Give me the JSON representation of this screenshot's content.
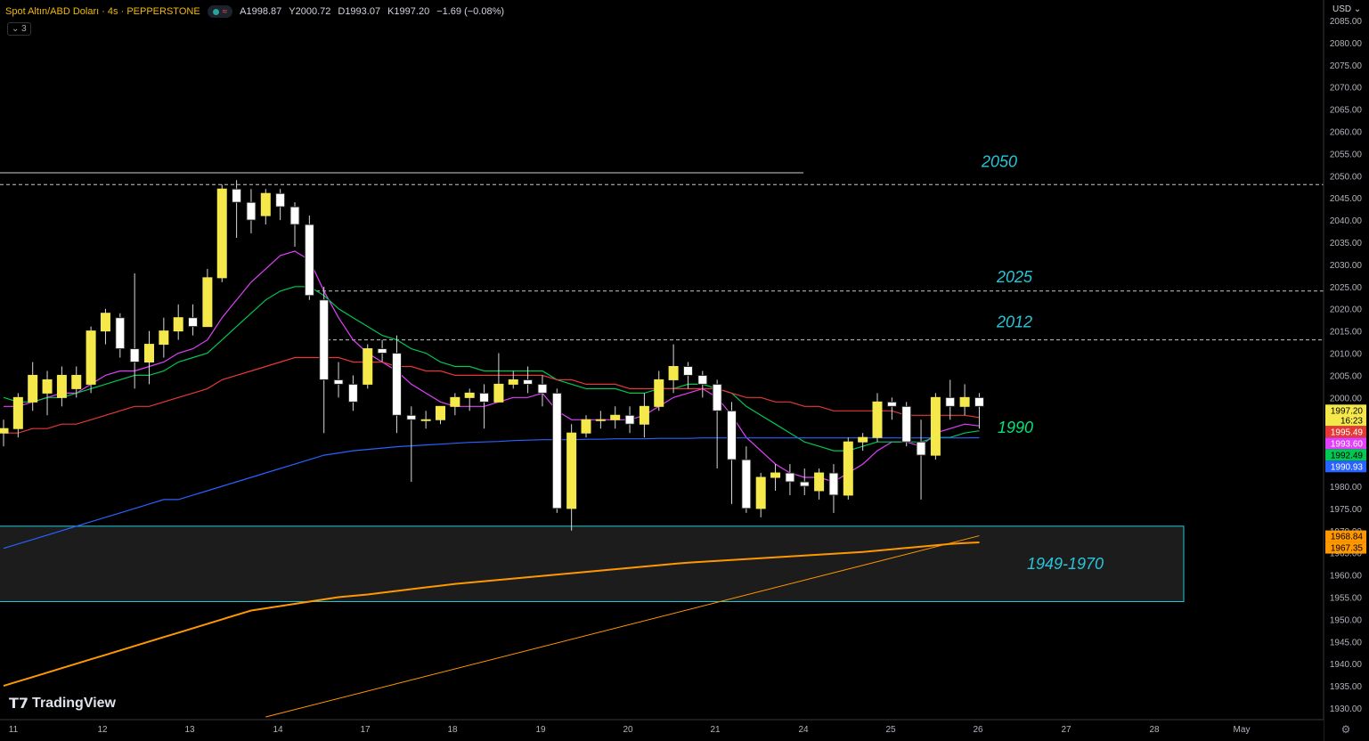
{
  "header": {
    "symbol": "Spot Altın/ABD Doları · 4s · PEPPERSTONE",
    "open": "A1998.87",
    "high": "Y2000.72",
    "low": "D1993.07",
    "close": "K1997.20",
    "change": "−1.69 (−0.08%)",
    "indicator_toggle": "3"
  },
  "currency": "USD",
  "logo": "TradingView",
  "chart_data": {
    "type": "candlestick",
    "title": "Spot Altın/ABD Doları · 4s · PEPPERSTONE",
    "ylim": [
      1928,
      2088
    ],
    "y_ticks": [
      "2085.00",
      "2080.00",
      "2075.00",
      "2070.00",
      "2065.00",
      "2060.00",
      "2055.00",
      "2050.00",
      "2045.00",
      "2040.00",
      "2035.00",
      "2030.00",
      "2025.00",
      "2020.00",
      "2015.00",
      "2010.00",
      "2005.00",
      "2000.00",
      "1995.00",
      "1990.00",
      "1985.00",
      "1980.00",
      "1975.00",
      "1970.00",
      "1965.00",
      "1960.00",
      "1955.00",
      "1950.00",
      "1945.00",
      "1940.00",
      "1935.00",
      "1930.00"
    ],
    "x_ticks": [
      "11",
      "12",
      "13",
      "14",
      "17",
      "18",
      "19",
      "20",
      "21",
      "24",
      "25",
      "26",
      "27",
      "28",
      "May"
    ],
    "candles": [
      {
        "o": 1992,
        "h": 1995,
        "l": 1989,
        "c": 1993
      },
      {
        "o": 1993,
        "h": 2001,
        "l": 1991,
        "c": 2000
      },
      {
        "o": 1999,
        "h": 2008,
        "l": 1997,
        "c": 2005
      },
      {
        "o": 2001,
        "h": 2006,
        "l": 1996,
        "c": 2004
      },
      {
        "o": 2000,
        "h": 2007,
        "l": 1998,
        "c": 2005
      },
      {
        "o": 2002,
        "h": 2007,
        "l": 2000,
        "c": 2005
      },
      {
        "o": 2003,
        "h": 2016,
        "l": 2001,
        "c": 2015
      },
      {
        "o": 2015,
        "h": 2020,
        "l": 2012,
        "c": 2019
      },
      {
        "o": 2018,
        "h": 2019,
        "l": 2009,
        "c": 2011
      },
      {
        "o": 2011,
        "h": 2028,
        "l": 2002,
        "c": 2008
      },
      {
        "o": 2008,
        "h": 2015,
        "l": 2003,
        "c": 2012
      },
      {
        "o": 2012,
        "h": 2018,
        "l": 2009,
        "c": 2015
      },
      {
        "o": 2015,
        "h": 2021,
        "l": 2013,
        "c": 2018
      },
      {
        "o": 2018,
        "h": 2021,
        "l": 2014,
        "c": 2016
      },
      {
        "o": 2016,
        "h": 2029,
        "l": 2016,
        "c": 2027
      },
      {
        "o": 2027,
        "h": 2048,
        "l": 2026,
        "c": 2047
      },
      {
        "o": 2047,
        "h": 2049,
        "l": 2036,
        "c": 2044
      },
      {
        "o": 2044,
        "h": 2047,
        "l": 2037,
        "c": 2040
      },
      {
        "o": 2041,
        "h": 2047,
        "l": 2039,
        "c": 2046
      },
      {
        "o": 2046,
        "h": 2047,
        "l": 2040,
        "c": 2043
      },
      {
        "o": 2043,
        "h": 2044,
        "l": 2034,
        "c": 2039
      },
      {
        "o": 2039,
        "h": 2041,
        "l": 2022,
        "c": 2023
      },
      {
        "o": 2022,
        "h": 2025,
        "l": 1992,
        "c": 2004
      },
      {
        "o": 2004,
        "h": 2008,
        "l": 2000,
        "c": 2003
      },
      {
        "o": 2003,
        "h": 2005,
        "l": 1997,
        "c": 1999
      },
      {
        "o": 2003,
        "h": 2012,
        "l": 2002,
        "c": 2011
      },
      {
        "o": 2011,
        "h": 2013,
        "l": 2008,
        "c": 2010
      },
      {
        "o": 2010,
        "h": 2014,
        "l": 1992,
        "c": 1996
      },
      {
        "o": 1996,
        "h": 1998,
        "l": 1981,
        "c": 1995
      },
      {
        "o": 1995,
        "h": 1997,
        "l": 1993,
        "c": 1995
      },
      {
        "o": 1995,
        "h": 1998,
        "l": 1994,
        "c": 1998
      },
      {
        "o": 1998,
        "h": 2001,
        "l": 1996,
        "c": 2000
      },
      {
        "o": 2000,
        "h": 2002,
        "l": 1997,
        "c": 2001
      },
      {
        "o": 2001,
        "h": 2003,
        "l": 1993,
        "c": 1999
      },
      {
        "o": 1999,
        "h": 2010,
        "l": 1999,
        "c": 2003
      },
      {
        "o": 2003,
        "h": 2006,
        "l": 2002,
        "c": 2004
      },
      {
        "o": 2004,
        "h": 2007,
        "l": 2001,
        "c": 2003
      },
      {
        "o": 2003,
        "h": 2005,
        "l": 1998,
        "c": 2001
      },
      {
        "o": 2001,
        "h": 2002,
        "l": 1974,
        "c": 1975
      },
      {
        "o": 1975,
        "h": 1994,
        "l": 1970,
        "c": 1992
      },
      {
        "o": 1992,
        "h": 1996,
        "l": 1991,
        "c": 1995
      },
      {
        "o": 1995,
        "h": 1997,
        "l": 1993,
        "c": 1995
      },
      {
        "o": 1995,
        "h": 1998,
        "l": 1993,
        "c": 1996
      },
      {
        "o": 1996,
        "h": 1998,
        "l": 1992,
        "c": 1994
      },
      {
        "o": 1994,
        "h": 2001,
        "l": 1991,
        "c": 1998
      },
      {
        "o": 1998,
        "h": 2006,
        "l": 1997,
        "c": 2004
      },
      {
        "o": 2004,
        "h": 2012,
        "l": 2001,
        "c": 2007
      },
      {
        "o": 2007,
        "h": 2008,
        "l": 2002,
        "c": 2005
      },
      {
        "o": 2005,
        "h": 2006,
        "l": 2000,
        "c": 2003
      },
      {
        "o": 2003,
        "h": 2004,
        "l": 1984,
        "c": 1997
      },
      {
        "o": 1997,
        "h": 1999,
        "l": 1976,
        "c": 1986
      },
      {
        "o": 1986,
        "h": 1989,
        "l": 1974,
        "c": 1975
      },
      {
        "o": 1975,
        "h": 1983,
        "l": 1973,
        "c": 1982
      },
      {
        "o": 1982,
        "h": 1985,
        "l": 1979,
        "c": 1983
      },
      {
        "o": 1983,
        "h": 1985,
        "l": 1978,
        "c": 1981
      },
      {
        "o": 1981,
        "h": 1984,
        "l": 1978,
        "c": 1980
      },
      {
        "o": 1979,
        "h": 1984,
        "l": 1977,
        "c": 1983
      },
      {
        "o": 1983,
        "h": 1985,
        "l": 1974,
        "c": 1978
      },
      {
        "o": 1978,
        "h": 1991,
        "l": 1977,
        "c": 1990
      },
      {
        "o": 1990,
        "h": 1992,
        "l": 1988,
        "c": 1991
      },
      {
        "o": 1991,
        "h": 2001,
        "l": 1990,
        "c": 1999
      },
      {
        "o": 1999,
        "h": 2000,
        "l": 1995,
        "c": 1998
      },
      {
        "o": 1998,
        "h": 1999,
        "l": 1989,
        "c": 1990
      },
      {
        "o": 1990,
        "h": 1995,
        "l": 1977,
        "c": 1987
      },
      {
        "o": 1987,
        "h": 2001,
        "l": 1986,
        "c": 2000
      },
      {
        "o": 2000,
        "h": 2004,
        "l": 1995,
        "c": 1998
      },
      {
        "o": 1998,
        "h": 2003,
        "l": 1996,
        "c": 2000
      },
      {
        "o": 2000,
        "h": 2001,
        "l": 1993,
        "c": 1998
      }
    ],
    "moving_averages": [
      {
        "color": "#e040fb",
        "values": [
          1998,
          1998,
          1999,
          2000,
          2001,
          2001,
          2003,
          2005,
          2006,
          2006,
          2007,
          2008,
          2010,
          2011,
          2013,
          2018,
          2022,
          2026,
          2029,
          2032,
          2033,
          2031,
          2024,
          2018,
          2013,
          2010,
          2008,
          2006,
          2003,
          2001,
          1999,
          1998,
          1998,
          1998,
          1999,
          2000,
          2000,
          2001,
          1997,
          1995,
          1995,
          1995,
          1995,
          1995,
          1996,
          1998,
          2000,
          2001,
          2002,
          2000,
          1996,
          1991,
          1988,
          1985,
          1983,
          1982,
          1982,
          1981,
          1983,
          1985,
          1988,
          1990,
          1990,
          1989,
          1992,
          1993,
          1994,
          1993.6
        ]
      },
      {
        "color": "#00c853",
        "values": [
          2000,
          1999,
          1999,
          2000,
          2000,
          2001,
          2002,
          2003,
          2004,
          2005,
          2005,
          2006,
          2008,
          2009,
          2010,
          2013,
          2016,
          2019,
          2022,
          2024,
          2025,
          2025,
          2023,
          2020,
          2018,
          2016,
          2014,
          2013,
          2011,
          2010,
          2008,
          2007,
          2007,
          2006,
          2006,
          2006,
          2006,
          2006,
          2004,
          2003,
          2002,
          2002,
          2002,
          2001,
          2001,
          2002,
          2002,
          2003,
          2003,
          2002,
          2001,
          1998,
          1996,
          1994,
          1992,
          1990,
          1989,
          1988,
          1988,
          1989,
          1990,
          1990,
          1990,
          1990,
          1991,
          1991,
          1992,
          1992.5
        ]
      },
      {
        "color": "#e53935",
        "values": [
          1992,
          1992,
          1993,
          1993,
          1994,
          1994,
          1995,
          1996,
          1997,
          1998,
          1998,
          1999,
          2000,
          2001,
          2002,
          2004,
          2005,
          2006,
          2007,
          2008,
          2009,
          2009,
          2009,
          2009,
          2008,
          2008,
          2008,
          2007,
          2007,
          2006,
          2006,
          2005,
          2005,
          2005,
          2005,
          2005,
          2005,
          2005,
          2004,
          2004,
          2003,
          2003,
          2003,
          2002,
          2002,
          2002,
          2002,
          2002,
          2002,
          2002,
          2001,
          2000,
          2000,
          1999,
          1999,
          1998,
          1998,
          1997,
          1997,
          1997,
          1997,
          1997,
          1996,
          1996,
          1996,
          1996,
          1996,
          1995.5
        ]
      },
      {
        "color": "#2962ff",
        "values": [
          1966,
          1967,
          1968,
          1969,
          1970,
          1971,
          1972,
          1973,
          1974,
          1975,
          1976,
          1977,
          1977,
          1978,
          1979,
          1980,
          1981,
          1982,
          1983,
          1984,
          1985,
          1986,
          1987,
          1987.5,
          1988,
          1988.3,
          1988.6,
          1988.9,
          1989.1,
          1989.3,
          1989.5,
          1989.7,
          1989.9,
          1990,
          1990.1,
          1990.3,
          1990.4,
          1990.5,
          1990.5,
          1990.5,
          1990.6,
          1990.6,
          1990.7,
          1990.7,
          1990.7,
          1990.8,
          1990.8,
          1990.8,
          1990.9,
          1990.9,
          1990.9,
          1990.9,
          1990.9,
          1990.9,
          1990.9,
          1990.9,
          1990.9,
          1990.9,
          1990.9,
          1990.9,
          1990.9,
          1990.9,
          1990.9,
          1990.9,
          1990.9,
          1990.9,
          1990.9,
          1990.93
        ]
      },
      {
        "color": "#ff9800",
        "values": [
          1935,
          1936,
          1937,
          1938,
          1939,
          1940,
          1941,
          1942,
          1943,
          1944,
          1945,
          1946,
          1947,
          1948,
          1949,
          1950,
          1951,
          1952,
          1952.5,
          1953,
          1953.5,
          1954,
          1954.5,
          1955,
          1955.3,
          1955.6,
          1956,
          1956.4,
          1956.8,
          1957.2,
          1957.6,
          1958,
          1958.3,
          1958.6,
          1958.9,
          1959.2,
          1959.5,
          1959.8,
          1960.1,
          1960.4,
          1960.7,
          1961,
          1961.3,
          1961.6,
          1961.9,
          1962.2,
          1962.5,
          1962.8,
          1963,
          1963.2,
          1963.4,
          1963.6,
          1963.8,
          1964,
          1964.2,
          1964.4,
          1964.6,
          1964.8,
          1965,
          1965.2,
          1965.5,
          1965.8,
          1966.1,
          1966.4,
          1966.7,
          1967,
          1967.2,
          1967.35
        ]
      }
    ],
    "trendline": {
      "color": "#ff9800",
      "from": {
        "i": 18,
        "v": 1928
      },
      "to": {
        "i": 67,
        "v": 1968.84
      }
    },
    "levels": [
      {
        "label": "2050",
        "value": 2048,
        "color": "#26c6da"
      },
      {
        "label": "2025",
        "value": 2024,
        "color": "#26c6da"
      },
      {
        "label": "2012",
        "value": 2013,
        "color": "#26c6da"
      },
      {
        "label": "1990",
        "value": 1992,
        "color": "#00e676"
      }
    ],
    "zone": {
      "label": "1949-1970",
      "from": 1954,
      "to": 1971,
      "color": "#26c6da"
    },
    "price_tags": [
      {
        "text": "1997.20",
        "sub": "16:23",
        "value": 1997.2,
        "bg": "#f5e84b",
        "fg": "#000"
      },
      {
        "text": "1995.49",
        "value": 1995.49,
        "bg": "#e53935",
        "fg": "#fff"
      },
      {
        "text": "1993.60",
        "value": 1993.6,
        "bg": "#e040fb",
        "fg": "#fff"
      },
      {
        "text": "1992.49",
        "value": 1992.49,
        "bg": "#00c853",
        "fg": "#000"
      },
      {
        "text": "1990.93",
        "value": 1990.93,
        "bg": "#2962ff",
        "fg": "#fff"
      },
      {
        "text": "1968.84",
        "value": 1968.84,
        "bg": "#ff9800",
        "fg": "#000"
      },
      {
        "text": "1967.35",
        "value": 1967.35,
        "bg": "#ff9800",
        "fg": "#000"
      }
    ]
  }
}
